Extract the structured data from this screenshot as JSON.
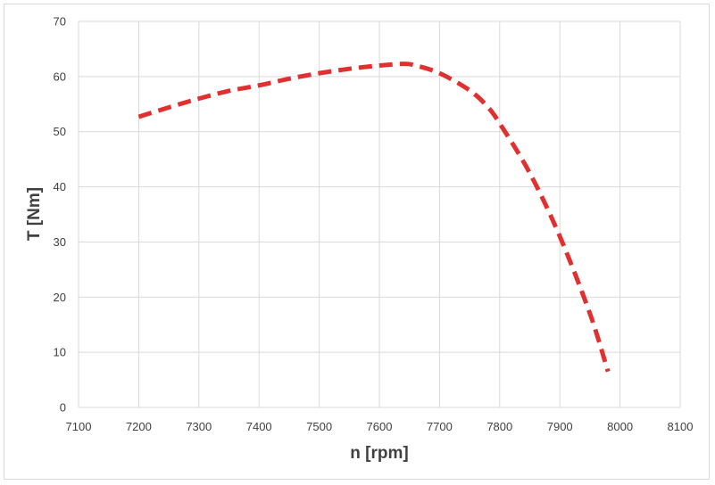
{
  "chart_data": {
    "type": "line",
    "title": "",
    "xlabel": "n [rpm]",
    "ylabel": "T [Nm]",
    "xlim": [
      7100,
      8100
    ],
    "ylim": [
      0,
      70
    ],
    "x_ticks": [
      7100,
      7200,
      7300,
      7400,
      7500,
      7600,
      7700,
      7800,
      7900,
      8000,
      8100
    ],
    "y_ticks": [
      0,
      10,
      20,
      30,
      40,
      50,
      60,
      70
    ],
    "grid": true,
    "legend": "none",
    "series": [
      {
        "color": "#e03030",
        "line_style": "dashed",
        "x": [
          7200,
          7250,
          7300,
          7350,
          7400,
          7450,
          7500,
          7550,
          7600,
          7640,
          7660,
          7700,
          7750,
          7780,
          7800,
          7850,
          7900,
          7950,
          7980
        ],
        "y": [
          52.7,
          54.4,
          56.0,
          57.4,
          58.4,
          59.6,
          60.6,
          61.4,
          62.0,
          62.3,
          62.0,
          60.6,
          57.5,
          54.5,
          51.5,
          42.5,
          31.0,
          17.0,
          6.5
        ]
      }
    ]
  }
}
